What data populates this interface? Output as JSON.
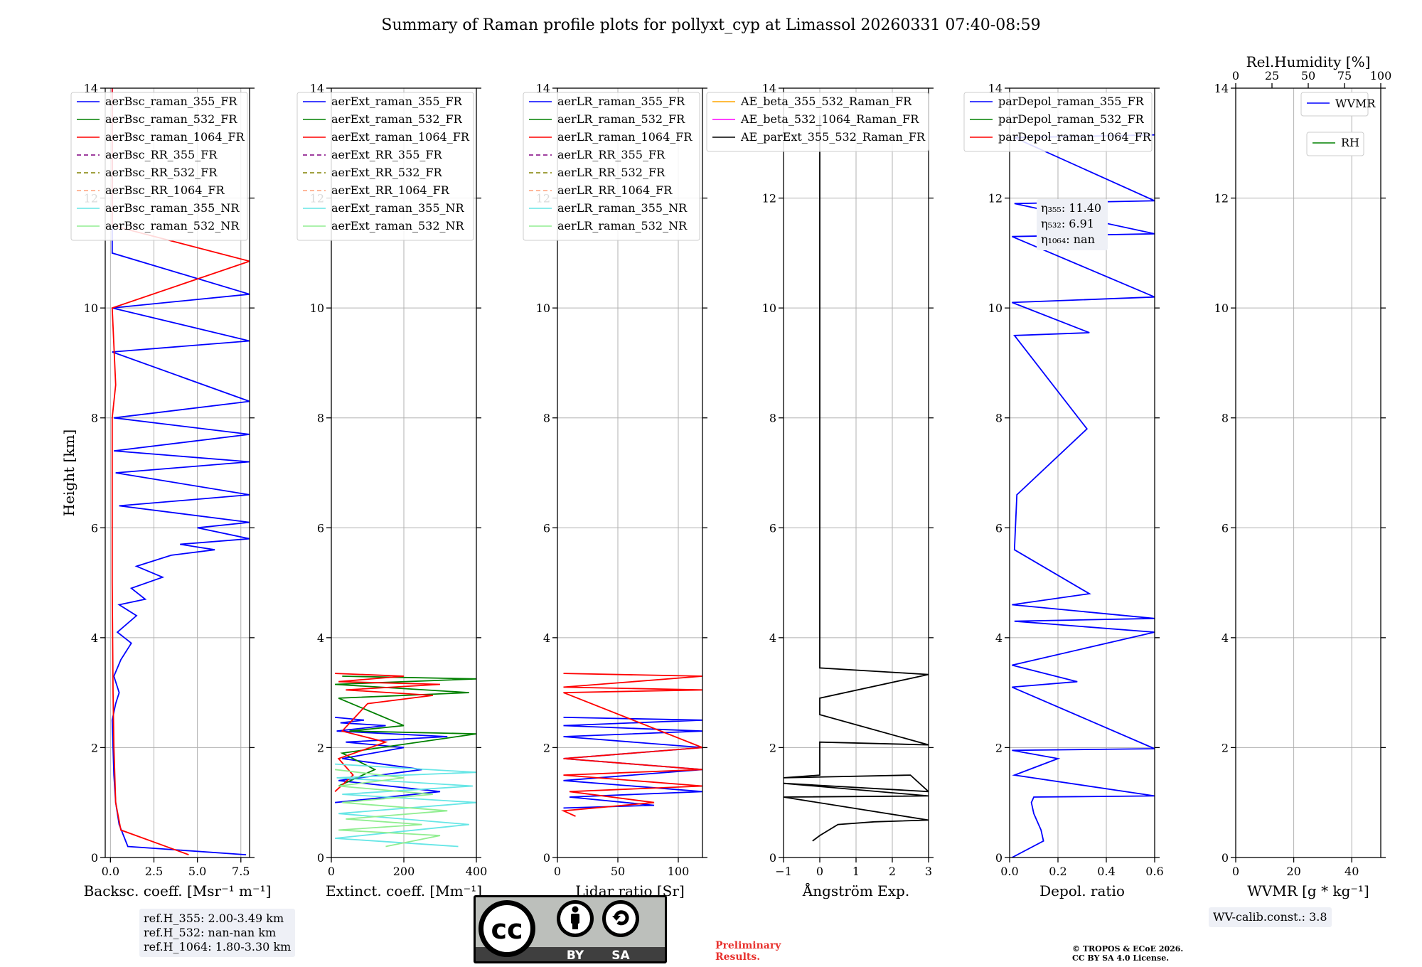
{
  "title": "Summary of Raman profile plots for pollyxt_cyp at Limassol 20260331 07:40-08:59",
  "chart_data": [
    {
      "type": "line",
      "panel": "backscatter",
      "xlabel": "Backsc. coeff. [Msr⁻¹ m⁻¹]",
      "ylabel": "Height [km]",
      "xlim": [
        -0.3,
        8
      ],
      "ylim": [
        0,
        14
      ],
      "xticks": [
        0,
        2.5,
        5,
        7.5
      ],
      "xticklabels": [
        "0.0",
        "2.5",
        "5.0",
        "7.5"
      ],
      "yticks": [
        0,
        2,
        4,
        6,
        8,
        10,
        12,
        14
      ],
      "legend": [
        "aerBsc_raman_355_FR",
        "aerBsc_raman_532_FR",
        "aerBsc_raman_1064_FR",
        "aerBsc_RR_355_FR",
        "aerBsc_RR_532_FR",
        "aerBsc_RR_1064_FR",
        "aerBsc_raman_355_NR",
        "aerBsc_raman_532_NR"
      ],
      "series": [
        {
          "name": "aerBsc_raman_355_FR",
          "color": "#0000ff",
          "x": [
            7.8,
            1.0,
            0.5,
            0.3,
            0.2,
            0.15,
            0.1,
            0.3,
            0.5,
            0.2,
            0.6,
            1.2,
            0.4,
            1.5,
            0.5,
            2.0,
            1.2,
            3.0,
            1.5,
            3.5,
            6.0,
            4.0,
            8.0,
            5.0,
            8.0,
            0.5,
            8.0,
            0.3,
            8.0,
            0.2,
            8.0,
            0.2,
            8.0,
            0.1,
            8.0,
            0.1,
            8.0,
            0.1,
            0.1
          ],
          "y": [
            0.05,
            0.2,
            0.6,
            1.0,
            1.5,
            2.0,
            2.5,
            2.8,
            3.0,
            3.3,
            3.6,
            3.9,
            4.1,
            4.4,
            4.6,
            4.7,
            4.9,
            5.1,
            5.3,
            5.5,
            5.6,
            5.7,
            5.8,
            6.0,
            6.1,
            6.4,
            6.6,
            7.0,
            7.2,
            7.4,
            7.7,
            8.0,
            8.3,
            9.2,
            9.4,
            10.0,
            10.25,
            11.0,
            14.0
          ]
        },
        {
          "name": "aerBsc_raman_1064_FR",
          "color": "#ff0000",
          "x": [
            4.5,
            0.6,
            0.3,
            0.2,
            0.15,
            0.1,
            0.1,
            0.3,
            0.1,
            8.0,
            0.1,
            0.1
          ],
          "y": [
            0.05,
            0.5,
            1.0,
            2.0,
            3.0,
            5.0,
            8.0,
            8.6,
            10.0,
            10.85,
            11.5,
            14.0
          ]
        }
      ]
    },
    {
      "type": "line",
      "panel": "extinction",
      "xlabel": "Extinct. coeff. [Mm⁻¹]",
      "xlim": [
        0,
        400
      ],
      "ylim": [
        0,
        14
      ],
      "xticks": [
        0,
        200,
        400
      ],
      "xticklabels": [
        "0",
        "200",
        "400"
      ],
      "yticks": [
        0,
        2,
        4,
        6,
        8,
        10,
        12,
        14
      ],
      "legend": [
        "aerExt_raman_355_FR",
        "aerExt_raman_532_FR",
        "aerExt_raman_1064_FR",
        "aerExt_RR_355_FR",
        "aerExt_RR_532_FR",
        "aerExt_RR_1064_FR",
        "aerExt_raman_355_NR",
        "aerExt_raman_532_NR"
      ],
      "series": [
        {
          "name": "aerExt_raman_355_FR",
          "color": "#0000ff",
          "x": [
            10,
            300,
            20,
            250,
            30,
            200,
            40,
            320,
            15,
            150,
            25,
            90,
            10
          ],
          "y": [
            1.0,
            1.2,
            1.4,
            1.6,
            1.8,
            2.0,
            2.1,
            2.2,
            2.3,
            2.4,
            2.45,
            2.5,
            2.55
          ]
        },
        {
          "name": "aerExt_raman_532_FR",
          "color": "#008000",
          "x": [
            20,
            120,
            30,
            400,
            50,
            200,
            20,
            380,
            10,
            400,
            30
          ],
          "y": [
            1.3,
            1.6,
            1.9,
            2.25,
            2.3,
            2.4,
            2.9,
            3.0,
            3.15,
            3.25,
            3.3
          ]
        },
        {
          "name": "aerExt_raman_1064_FR",
          "color": "#ff0000",
          "x": [
            10,
            60,
            20,
            150,
            30,
            100,
            280,
            40,
            300,
            20,
            200,
            10
          ],
          "y": [
            1.2,
            1.5,
            1.8,
            2.1,
            2.3,
            2.8,
            2.95,
            3.05,
            3.15,
            3.2,
            3.3,
            3.35
          ]
        },
        {
          "name": "aerExt_raman_355_NR",
          "color": "#66e6e6",
          "x": [
            350,
            10,
            380,
            20,
            400,
            30,
            390,
            15,
            400,
            10
          ],
          "y": [
            0.2,
            0.35,
            0.6,
            0.8,
            1.0,
            1.15,
            1.3,
            1.45,
            1.55,
            1.7
          ]
        },
        {
          "name": "aerExt_raman_532_NR",
          "color": "#90ee90",
          "x": [
            150,
            300,
            20,
            250,
            40,
            320,
            30,
            280,
            20,
            200,
            10
          ],
          "y": [
            0.2,
            0.4,
            0.5,
            0.6,
            0.7,
            0.85,
            1.0,
            1.15,
            1.3,
            1.45,
            1.6
          ]
        }
      ]
    },
    {
      "type": "line",
      "panel": "lidar_ratio",
      "xlabel": "Lidar ratio [Sr]",
      "xlim": [
        0,
        120
      ],
      "ylim": [
        0,
        14
      ],
      "xticks": [
        0,
        50,
        100
      ],
      "xticklabels": [
        "0",
        "50",
        "100"
      ],
      "yticks": [
        0,
        2,
        4,
        6,
        8,
        10,
        12,
        14
      ],
      "legend": [
        "aerLR_raman_355_FR",
        "aerLR_raman_532_FR",
        "aerLR_raman_1064_FR",
        "aerLR_RR_355_FR",
        "aerLR_RR_532_FR",
        "aerLR_RR_1064_FR",
        "aerLR_raman_355_NR",
        "aerLR_raman_532_NR"
      ],
      "series": [
        {
          "name": "aerLR_raman_355_FR",
          "color": "#0000ff",
          "x": [
            5,
            80,
            10,
            120,
            5,
            120,
            5,
            120,
            5,
            120,
            5,
            120,
            5
          ],
          "y": [
            0.9,
            0.95,
            1.1,
            1.2,
            1.4,
            1.6,
            1.8,
            2.0,
            2.2,
            2.3,
            2.4,
            2.5,
            2.55
          ]
        },
        {
          "name": "aerLR_raman_1064_FR",
          "color": "#ff0000",
          "x": [
            15,
            5,
            80,
            10,
            120,
            5,
            120,
            5,
            120,
            5,
            120,
            5,
            120,
            5
          ],
          "y": [
            0.75,
            0.85,
            1.0,
            1.2,
            1.3,
            1.5,
            1.6,
            1.8,
            2.0,
            3.0,
            3.05,
            3.1,
            3.3,
            3.35
          ]
        }
      ]
    },
    {
      "type": "line",
      "panel": "angstrom",
      "xlabel": "Ångström Exp.",
      "xlim": [
        -1,
        3
      ],
      "ylim": [
        0,
        14
      ],
      "xticks": [
        -1,
        0,
        1,
        2,
        3
      ],
      "xticklabels": [
        "−1",
        "0",
        "1",
        "2",
        "3"
      ],
      "yticks": [
        0,
        2,
        4,
        6,
        8,
        10,
        12,
        14
      ],
      "legend": [
        "AE_beta_355_532_Raman_FR",
        "AE_beta_532_1064_Raman_FR",
        "AE_parExt_355_532_Raman_FR"
      ],
      "series": [
        {
          "name": "AE_parExt_355_532_Raman_FR",
          "color": "#000000",
          "x": [
            -0.2,
            0.0,
            0.5,
            1.5,
            3.0,
            -1.0,
            3.0,
            -1.0,
            3.0,
            2.5,
            -1.0,
            0.0,
            0.0,
            3.0,
            0.0,
            0.0,
            3.0,
            0.0,
            0.0
          ],
          "y": [
            0.3,
            0.4,
            0.6,
            0.65,
            0.68,
            1.1,
            1.12,
            1.35,
            1.2,
            1.5,
            1.45,
            1.5,
            2.1,
            2.05,
            2.6,
            2.9,
            3.33,
            3.45,
            13.5
          ]
        }
      ]
    },
    {
      "type": "line",
      "panel": "depolarization",
      "xlabel": "Depol. ratio",
      "xlim": [
        0,
        0.6
      ],
      "ylim": [
        0,
        14
      ],
      "xticks": [
        0,
        0.2,
        0.4,
        0.6
      ],
      "xticklabels": [
        "0.0",
        "0.2",
        "0.4",
        "0.6"
      ],
      "yticks": [
        0,
        2,
        4,
        6,
        8,
        10,
        12,
        14
      ],
      "legend": [
        "parDepol_raman_355_FR",
        "parDepol_raman_532_FR",
        "parDepol_raman_1064_FR"
      ],
      "annotations": {
        "eta355": "η₃₅₅: 11.40",
        "eta532": "η₅₃₂: 6.91",
        "eta1064": "η₁₀₆₄: nan"
      },
      "series": [
        {
          "name": "parDepol_raman_355_FR",
          "color": "#0000ff",
          "x": [
            0.01,
            0.14,
            0.13,
            0.1,
            0.09,
            0.1,
            0.6,
            0.02,
            0.2,
            0.01,
            0.6,
            0.01,
            0.28,
            0.01,
            0.6,
            0.02,
            0.6,
            0.01,
            0.33,
            0.02,
            0.03,
            0.32,
            0.02,
            0.33,
            0.01,
            0.6,
            0.01,
            0.6,
            0.02,
            0.6,
            0.02,
            0.6
          ],
          "y": [
            0.0,
            0.3,
            0.5,
            0.8,
            1.0,
            1.1,
            1.12,
            1.5,
            1.8,
            1.95,
            1.98,
            3.1,
            3.2,
            3.5,
            4.1,
            4.3,
            4.35,
            4.6,
            4.8,
            5.6,
            6.6,
            7.8,
            9.5,
            9.55,
            10.1,
            10.2,
            11.3,
            11.35,
            11.9,
            11.95,
            13.1,
            13.15
          ]
        }
      ]
    },
    {
      "type": "line",
      "panel": "wvmr",
      "xlabel": "WVMR [g * kg⁻¹]",
      "top_xlabel": "Rel.Humidity [%]",
      "xlim": [
        0,
        50
      ],
      "ylim": [
        0,
        14
      ],
      "xticks": [
        0,
        20,
        40
      ],
      "xticklabels": [
        "0",
        "20",
        "40"
      ],
      "top_xticks": [
        0,
        25,
        50,
        75,
        100
      ],
      "top_xticklabels": [
        "0",
        "25",
        "50",
        "75",
        "100"
      ],
      "yticks": [
        0,
        2,
        4,
        6,
        8,
        10,
        12,
        14
      ],
      "legend": [
        "WVMR",
        "RH"
      ],
      "series": []
    }
  ],
  "legend_colors": {
    "raman_355_FR": "#0000ff",
    "raman_532_FR": "#008000",
    "raman_1064_FR": "#ff0000",
    "RR_355_FR": "#800080",
    "RR_532_FR": "#808000",
    "RR_1064_FR": "#ffa07a",
    "raman_355_NR": "#66e6e6",
    "raman_532_NR": "#90ee90",
    "AE_beta_355_532": "#ffa500",
    "AE_beta_532_1064": "#ff00ff",
    "AE_parExt": "#000000"
  },
  "ref_heights": {
    "h355": "ref.H_355: 2.00-3.49 km",
    "h532": "ref.H_532: nan-nan km",
    "h1064": "ref.H_1064: 1.80-3.30 km"
  },
  "wv_calib": "WV-calib.const.: 3.8",
  "preliminary": [
    "Preliminary",
    "Results."
  ],
  "copyright": [
    "© TROPOS & ECoE 2026.",
    "CC BY SA 4.0 License."
  ],
  "license_badge": {
    "by": "BY",
    "sa": "SA",
    "cc": "cc"
  }
}
